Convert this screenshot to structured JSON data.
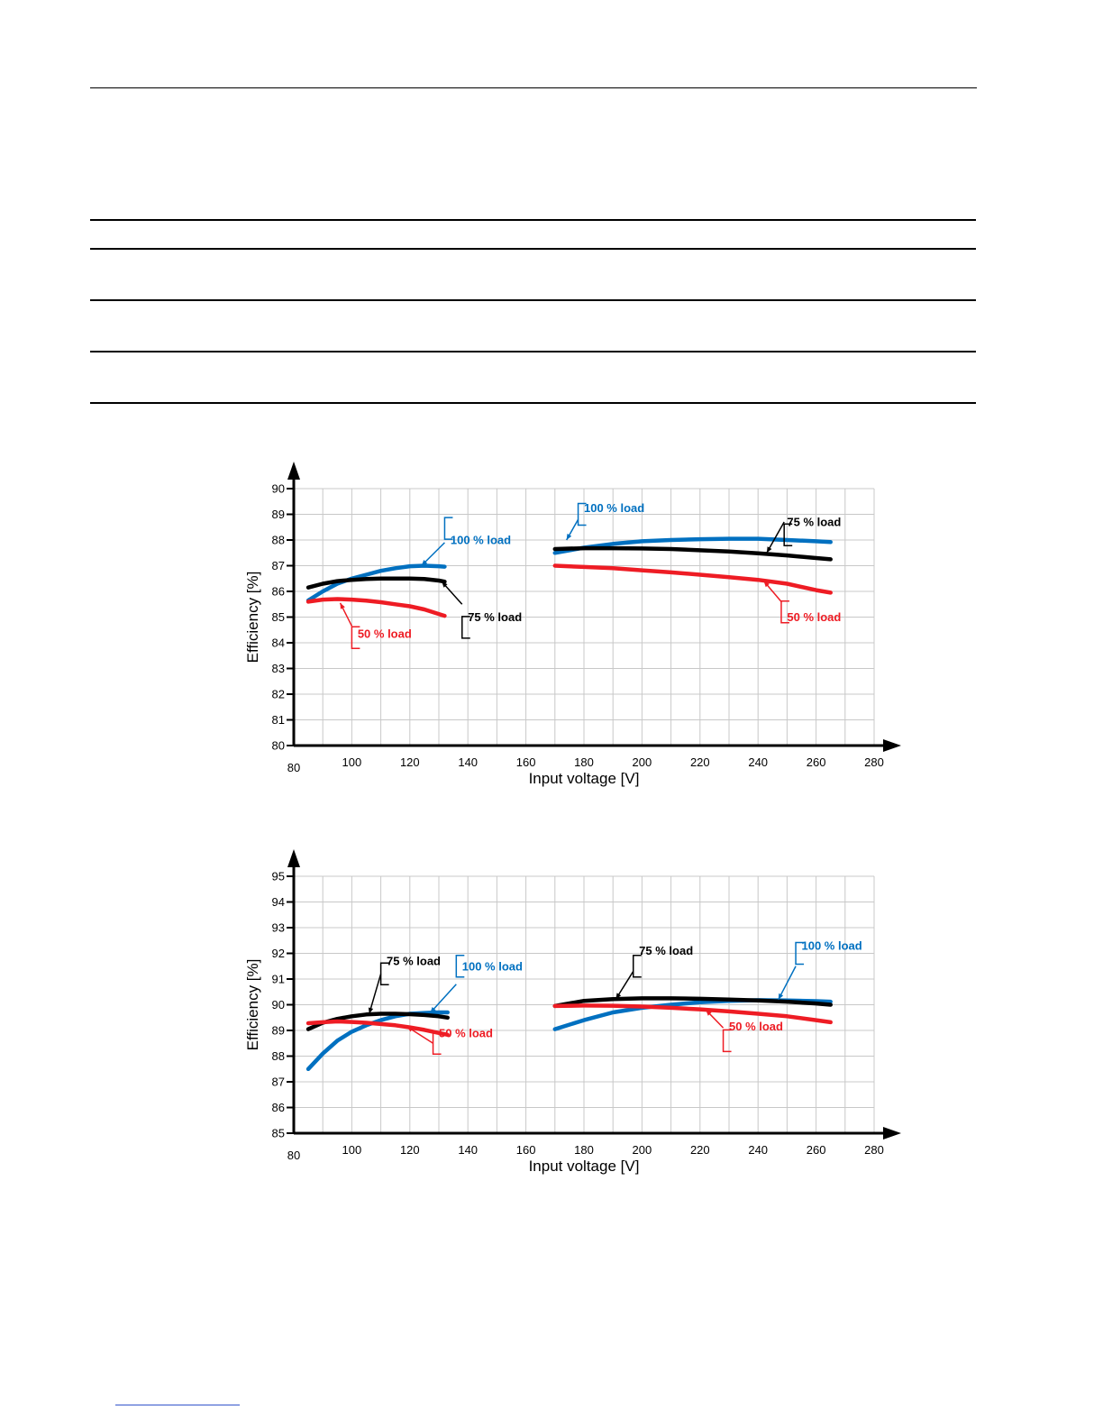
{
  "colors": {
    "blue": "#0070C0",
    "black": "#000000",
    "red": "#EE1C24",
    "grid": "#c8c8c8"
  },
  "chart_data": [
    {
      "type": "line",
      "xlabel": "Input voltage [V]",
      "ylabel": "Efficiency [%]",
      "xlim": [
        80,
        280
      ],
      "ylim": [
        80,
        90
      ],
      "xticks": [
        80,
        100,
        120,
        140,
        160,
        180,
        200,
        220,
        240,
        260,
        280
      ],
      "yticks": [
        80,
        81,
        82,
        83,
        84,
        85,
        86,
        87,
        88,
        89,
        90
      ],
      "grid": true,
      "series": [
        {
          "name": "100 % load",
          "color": "blue",
          "segments": [
            [
              [
                85,
                85.65
              ],
              [
                90,
                86.0
              ],
              [
                95,
                86.3
              ],
              [
                100,
                86.5
              ],
              [
                105,
                86.65
              ],
              [
                110,
                86.8
              ],
              [
                115,
                86.9
              ],
              [
                120,
                86.98
              ],
              [
                125,
                87.0
              ],
              [
                130,
                86.98
              ],
              [
                132,
                86.96
              ]
            ],
            [
              [
                170,
                87.5
              ],
              [
                180,
                87.7
              ],
              [
                190,
                87.85
              ],
              [
                200,
                87.95
              ],
              [
                210,
                88.0
              ],
              [
                220,
                88.03
              ],
              [
                230,
                88.05
              ],
              [
                240,
                88.05
              ],
              [
                250,
                88.0
              ],
              [
                260,
                87.95
              ],
              [
                265,
                87.92
              ]
            ]
          ]
        },
        {
          "name": "75 % load",
          "color": "black",
          "segments": [
            [
              [
                85,
                86.15
              ],
              [
                90,
                86.3
              ],
              [
                95,
                86.4
              ],
              [
                100,
                86.45
              ],
              [
                105,
                86.48
              ],
              [
                110,
                86.5
              ],
              [
                115,
                86.5
              ],
              [
                120,
                86.5
              ],
              [
                125,
                86.48
              ],
              [
                130,
                86.42
              ],
              [
                132,
                86.38
              ]
            ],
            [
              [
                170,
                87.65
              ],
              [
                180,
                87.68
              ],
              [
                190,
                87.68
              ],
              [
                200,
                87.67
              ],
              [
                210,
                87.65
              ],
              [
                220,
                87.6
              ],
              [
                230,
                87.55
              ],
              [
                240,
                87.48
              ],
              [
                250,
                87.4
              ],
              [
                260,
                87.3
              ],
              [
                265,
                87.25
              ]
            ]
          ]
        },
        {
          "name": "50 % load",
          "color": "red",
          "segments": [
            [
              [
                85,
                85.6
              ],
              [
                90,
                85.68
              ],
              [
                95,
                85.7
              ],
              [
                100,
                85.68
              ],
              [
                105,
                85.64
              ],
              [
                110,
                85.58
              ],
              [
                115,
                85.5
              ],
              [
                120,
                85.42
              ],
              [
                125,
                85.3
              ],
              [
                130,
                85.12
              ],
              [
                132,
                85.05
              ]
            ],
            [
              [
                170,
                87.0
              ],
              [
                180,
                86.95
              ],
              [
                190,
                86.9
              ],
              [
                200,
                86.82
              ],
              [
                210,
                86.74
              ],
              [
                220,
                86.65
              ],
              [
                230,
                86.55
              ],
              [
                240,
                86.45
              ],
              [
                250,
                86.3
              ],
              [
                260,
                86.05
              ],
              [
                265,
                85.95
              ]
            ]
          ]
        }
      ],
      "annotations": [
        {
          "text": "100 % load",
          "color": "blue",
          "bracket": [
            132,
            88.45,
            9
          ],
          "label": [
            134,
            88.0
          ],
          "arrow": [
            [
              132,
              87.9
            ],
            [
              124,
              87.0
            ]
          ]
        },
        {
          "text": "75 % load",
          "color": "black",
          "bracket": [
            138,
            84.6,
            9
          ],
          "label": [
            140,
            85.0
          ],
          "arrow": [
            [
              138,
              85.5
            ],
            [
              131,
              86.38
            ]
          ]
        },
        {
          "text": "50 % load",
          "color": "red",
          "bracket": [
            100,
            84.2,
            9
          ],
          "label": [
            102,
            84.35
          ],
          "arrow": [
            [
              100,
              84.65
            ],
            [
              96,
              85.55
            ]
          ]
        },
        {
          "text": "100 % load",
          "color": "blue",
          "bracket": [
            178,
            89.0,
            9
          ],
          "label": [
            180,
            89.25
          ],
          "arrow": [
            [
              178,
              88.8
            ],
            [
              174,
              88.0
            ]
          ]
        },
        {
          "text": "75 % load",
          "color": "black",
          "bracket": [
            249,
            88.2,
            9
          ],
          "label": [
            250,
            88.7
          ],
          "arrow": [
            [
              249,
              88.7
            ],
            [
              243,
              87.5
            ]
          ]
        },
        {
          "text": "50 % load",
          "color": "red",
          "bracket": [
            248,
            85.2,
            9
          ],
          "label": [
            250,
            85.0
          ],
          "arrow": [
            [
              248,
              85.6
            ],
            [
              242,
              86.4
            ]
          ]
        }
      ]
    },
    {
      "type": "line",
      "xlabel": "Input voltage [V]",
      "ylabel": "Efficiency [%]",
      "xlim": [
        80,
        280
      ],
      "ylim": [
        85,
        95
      ],
      "xticks": [
        80,
        100,
        120,
        140,
        160,
        180,
        200,
        220,
        240,
        260,
        280
      ],
      "yticks": [
        85,
        86,
        87,
        88,
        89,
        90,
        91,
        92,
        93,
        94,
        95
      ],
      "grid": true,
      "series": [
        {
          "name": "100 % load",
          "color": "blue",
          "segments": [
            [
              [
                85,
                87.5
              ],
              [
                90,
                88.1
              ],
              [
                95,
                88.6
              ],
              [
                100,
                88.95
              ],
              [
                105,
                89.2
              ],
              [
                110,
                89.4
              ],
              [
                115,
                89.55
              ],
              [
                120,
                89.65
              ],
              [
                125,
                89.68
              ],
              [
                130,
                89.7
              ],
              [
                133,
                89.7
              ]
            ],
            [
              [
                170,
                89.05
              ],
              [
                180,
                89.4
              ],
              [
                190,
                89.7
              ],
              [
                200,
                89.88
              ],
              [
                210,
                90.0
              ],
              [
                220,
                90.1
              ],
              [
                230,
                90.15
              ],
              [
                240,
                90.18
              ],
              [
                250,
                90.17
              ],
              [
                260,
                90.14
              ],
              [
                265,
                90.12
              ]
            ]
          ]
        },
        {
          "name": "75 % load",
          "color": "black",
          "segments": [
            [
              [
                85,
                89.05
              ],
              [
                90,
                89.3
              ],
              [
                95,
                89.45
              ],
              [
                100,
                89.55
              ],
              [
                105,
                89.62
              ],
              [
                110,
                89.65
              ],
              [
                115,
                89.65
              ],
              [
                120,
                89.63
              ],
              [
                125,
                89.6
              ],
              [
                130,
                89.55
              ],
              [
                133,
                89.5
              ]
            ],
            [
              [
                170,
                89.95
              ],
              [
                180,
                90.15
              ],
              [
                190,
                90.22
              ],
              [
                200,
                90.25
              ],
              [
                210,
                90.25
              ],
              [
                220,
                90.23
              ],
              [
                230,
                90.2
              ],
              [
                240,
                90.17
              ],
              [
                250,
                90.12
              ],
              [
                260,
                90.05
              ],
              [
                265,
                90.0
              ]
            ]
          ]
        },
        {
          "name": "50 % load",
          "color": "red",
          "segments": [
            [
              [
                85,
                89.28
              ],
              [
                90,
                89.32
              ],
              [
                95,
                89.35
              ],
              [
                100,
                89.33
              ],
              [
                105,
                89.3
              ],
              [
                110,
                89.25
              ],
              [
                115,
                89.2
              ],
              [
                120,
                89.12
              ],
              [
                125,
                89.02
              ],
              [
                130,
                88.9
              ],
              [
                133,
                88.83
              ]
            ],
            [
              [
                170,
                89.95
              ],
              [
                180,
                89.97
              ],
              [
                190,
                89.96
              ],
              [
                200,
                89.93
              ],
              [
                210,
                89.88
              ],
              [
                220,
                89.82
              ],
              [
                230,
                89.74
              ],
              [
                240,
                89.65
              ],
              [
                250,
                89.55
              ],
              [
                260,
                89.4
              ],
              [
                265,
                89.32
              ]
            ]
          ]
        }
      ],
      "annotations": [
        {
          "text": "75 % load",
          "color": "black",
          "bracket": [
            110,
            91.2,
            9
          ],
          "label": [
            112,
            91.7
          ],
          "arrow": [
            [
              110,
              91.2
            ],
            [
              106,
              89.65
            ]
          ]
        },
        {
          "text": "100 % load",
          "color": "blue",
          "bracket": [
            136,
            91.5,
            9
          ],
          "label": [
            138,
            91.5
          ],
          "arrow": [
            [
              136,
              90.8
            ],
            [
              127,
              89.68
            ]
          ]
        },
        {
          "text": "50 % load",
          "color": "red",
          "bracket": [
            128,
            88.5,
            9
          ],
          "label": [
            130,
            88.9
          ],
          "arrow": [
            [
              128,
              88.5
            ],
            [
              119,
              89.15
            ]
          ]
        },
        {
          "text": "75 % load",
          "color": "black",
          "bracket": [
            197,
            91.5,
            9
          ],
          "label": [
            199,
            92.1
          ],
          "arrow": [
            [
              197,
              91.3
            ],
            [
              191,
              90.22
            ]
          ]
        },
        {
          "text": "100 % load",
          "color": "blue",
          "bracket": [
            253,
            92.0,
            9
          ],
          "label": [
            255,
            92.3
          ],
          "arrow": [
            [
              253,
              91.5
            ],
            [
              247,
              90.2
            ]
          ]
        },
        {
          "text": "50 % load",
          "color": "red",
          "bracket": [
            228,
            88.6,
            9
          ],
          "label": [
            230,
            89.15
          ],
          "arrow": [
            [
              228,
              89.1
            ],
            [
              222,
              89.8
            ]
          ]
        }
      ]
    }
  ]
}
